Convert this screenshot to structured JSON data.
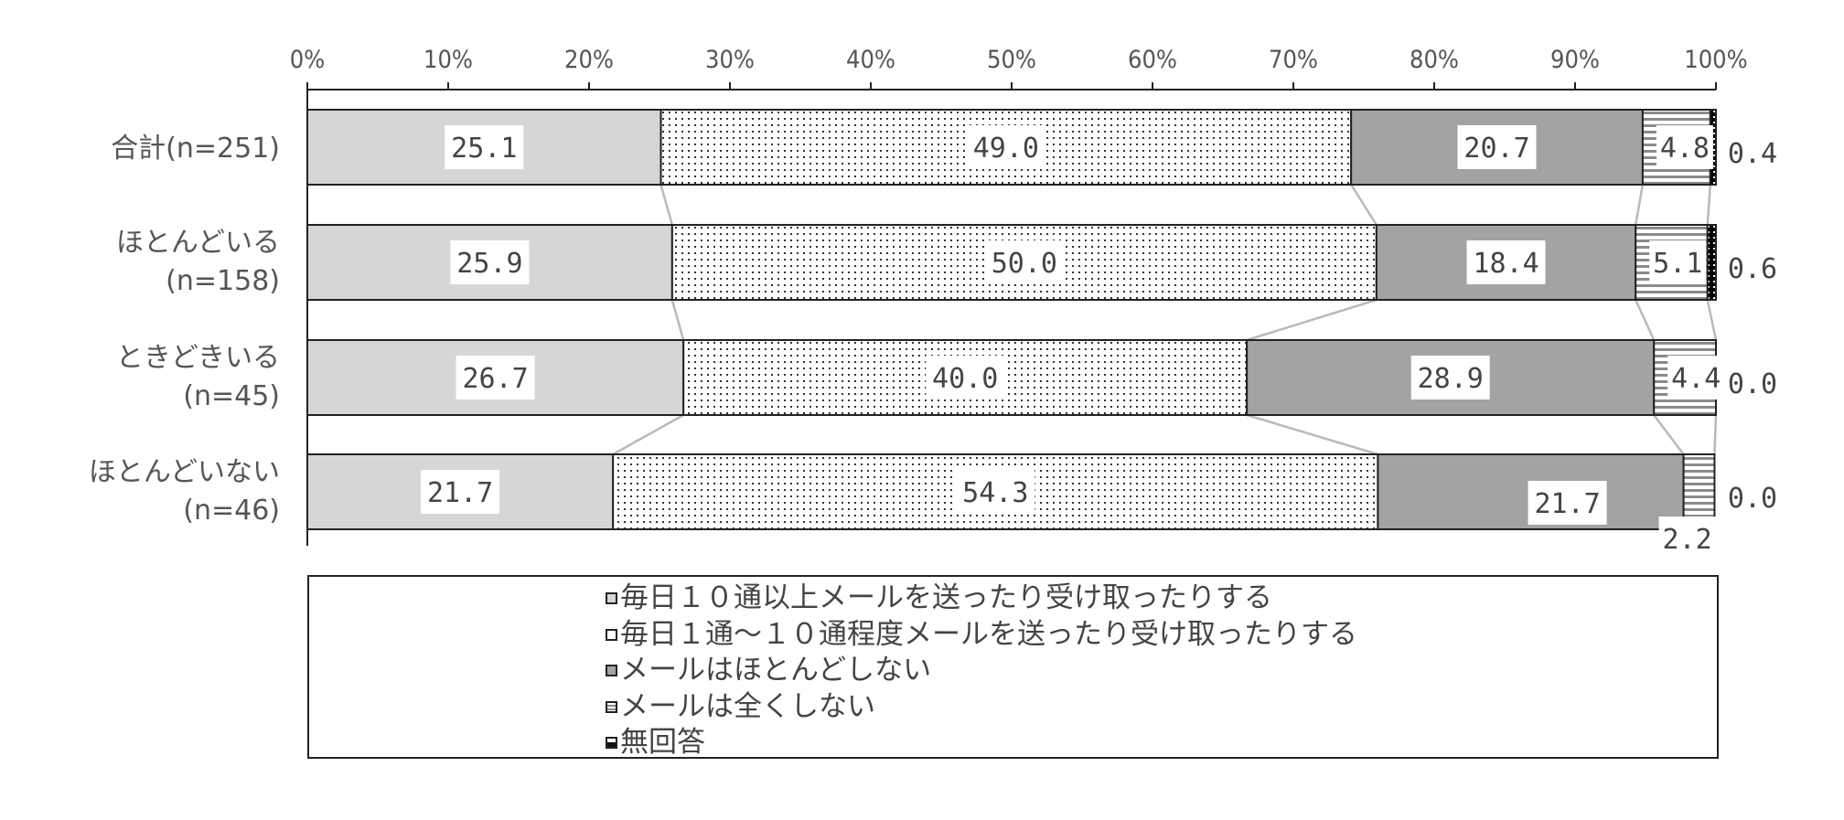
{
  "chart_data": {
    "type": "bar",
    "stacked": "100%",
    "orientation": "horizontal",
    "categories": [
      "合計(n=251)",
      "ほとんどいる|(n=158)",
      "ときどきいる|(n=45)",
      "ほとんどいない|(n=46)"
    ],
    "series": [
      {
        "name": "毎日１０通以上メールを送ったり受け取ったりする",
        "values": [
          25.1,
          25.9,
          26.7,
          21.7
        ],
        "color": "#d6d6d6"
      },
      {
        "name": "毎日１通～１０通程度メールを送ったり受け取ったりする",
        "values": [
          49.0,
          50.0,
          40.0,
          54.3
        ],
        "color": "#ffffff"
      },
      {
        "name": "メールはほとんどしない",
        "values": [
          20.7,
          18.4,
          28.9,
          21.7
        ],
        "color": "#a3a3a3"
      },
      {
        "name": "メールは全くしない",
        "values": [
          4.8,
          5.1,
          4.4,
          2.2
        ],
        "color": "#e6e6e6"
      },
      {
        "name": "無回答",
        "values": [
          0.4,
          0.6,
          0.0,
          0.0
        ],
        "color": "#1e1e1e"
      }
    ],
    "data_labels": [
      [
        "25.1",
        "49.0",
        "20.7",
        "4.8",
        "0.4"
      ],
      [
        "25.9",
        "50.0",
        "18.4",
        "5.1",
        "0.6"
      ],
      [
        "26.7",
        "40.0",
        "28.9",
        "4.4",
        "0.0"
      ],
      [
        "21.7",
        "54.3",
        "21.7",
        "2.2",
        "0.0"
      ]
    ],
    "xticks": [
      "0%",
      "10%",
      "20%",
      "30%",
      "40%",
      "50%",
      "60%",
      "70%",
      "80%",
      "90%",
      "100%"
    ],
    "xlim": [
      0,
      100
    ],
    "legend_position": "bottom",
    "series_lines": true
  }
}
